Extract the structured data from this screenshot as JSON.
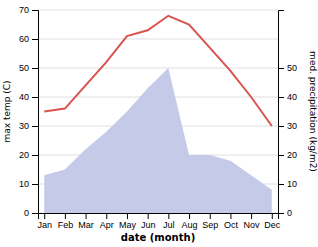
{
  "chart_data": {
    "type": "line",
    "categories": [
      "Jan",
      "Feb",
      "Mar",
      "Apr",
      "May",
      "Jun",
      "Jul",
      "Aug",
      "Sep",
      "Oct",
      "Nov",
      "Dec"
    ],
    "series": [
      {
        "type": "area",
        "axis": "y2",
        "color": "#c5cae9",
        "values": [
          13,
          15,
          22,
          28,
          35,
          43,
          50,
          20,
          20,
          18,
          13,
          8
        ]
      },
      {
        "type": "line",
        "color": "#d9534f",
        "values": [
          35,
          36,
          44,
          52,
          61,
          63,
          68,
          65,
          57,
          49,
          40,
          30
        ]
      }
    ],
    "xlabel": "date (month)",
    "ylabel": "max temp (C)",
    "y2label": "med. precipitation (kg/m2)",
    "ylim": [
      0,
      70
    ],
    "yticks": [
      0,
      10,
      20,
      30,
      40,
      50,
      60,
      70
    ],
    "y2lim": [
      0,
      70
    ],
    "y2ticks": [
      0,
      10,
      20,
      30,
      40,
      50
    ],
    "grid": true
  }
}
